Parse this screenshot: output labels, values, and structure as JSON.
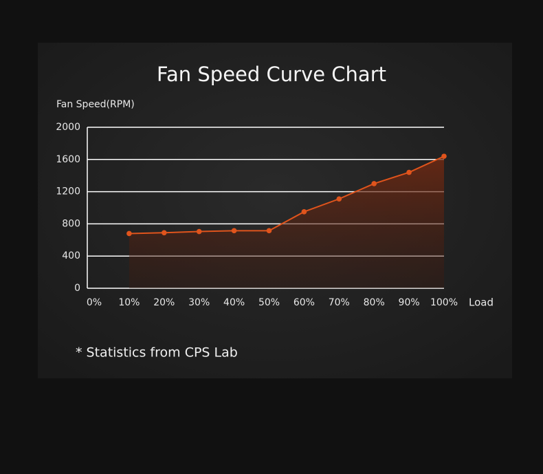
{
  "chart_data": {
    "type": "line",
    "title": "Fan Speed Curve Chart",
    "y_label": "Fan Speed(RPM)",
    "x_label": "Load",
    "categories": [
      "0%",
      "10%",
      "20%",
      "30%",
      "40%",
      "50%",
      "60%",
      "70%",
      "80%",
      "90%",
      "100%"
    ],
    "values": [
      null,
      680,
      690,
      705,
      715,
      715,
      950,
      1110,
      1300,
      1440,
      1640
    ],
    "color": "#e0541c",
    "ylim": [
      0,
      2000
    ],
    "yticks": [
      0,
      400,
      800,
      1200,
      1600,
      2000
    ],
    "grid": true,
    "note": "* Statistics from CPS Lab"
  }
}
